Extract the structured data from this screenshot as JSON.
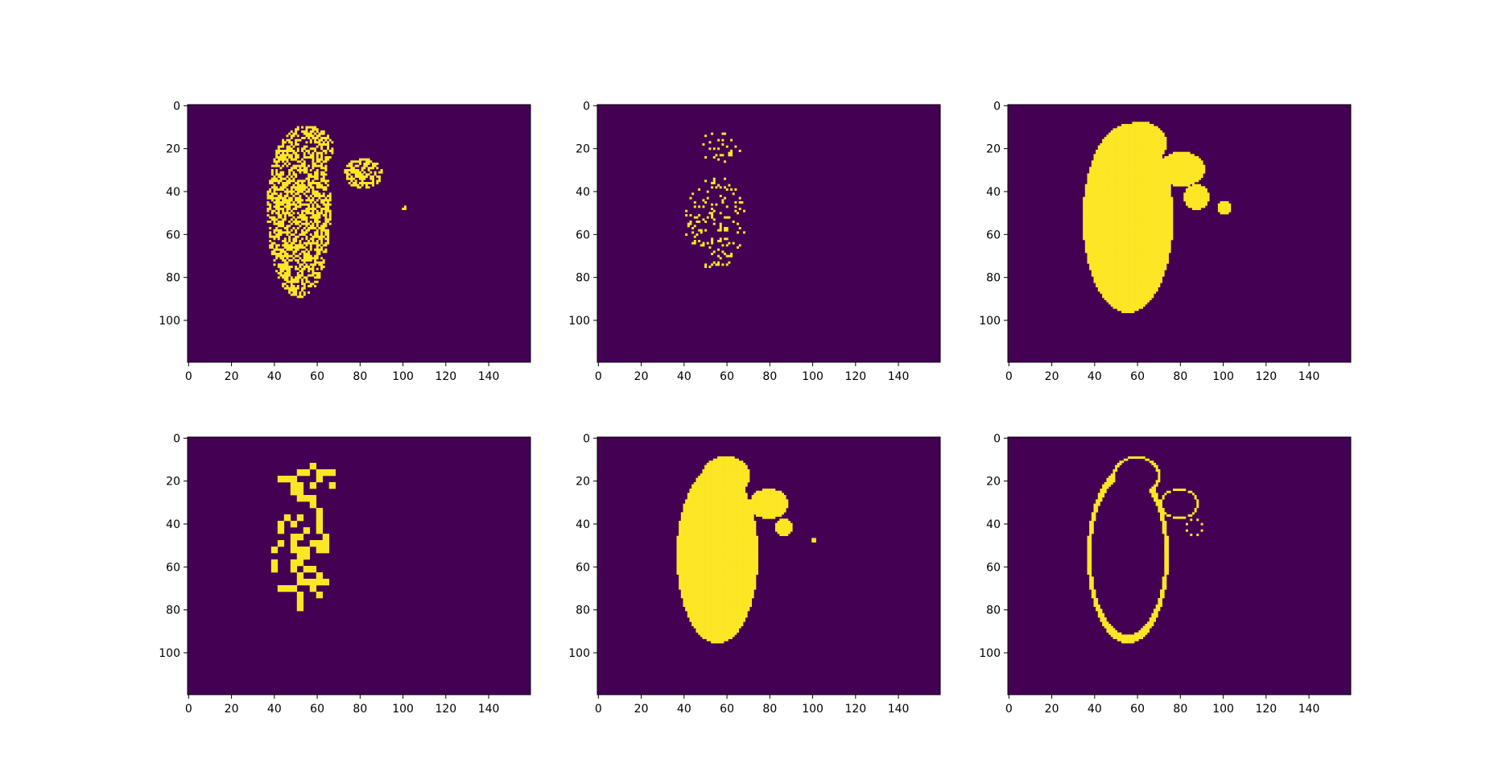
{
  "figure": {
    "layout": "2x3 grid of image panels (matplotlib imshow, viridis colormap, binary masks)",
    "colors": {
      "background": "#440154",
      "foreground": "#fde725",
      "axes": "#000000"
    }
  },
  "chart_data": [
    {
      "type": "heatmap",
      "panel": "row1-col1",
      "description": "sparse speckled binary mask",
      "image_shape": [
        120,
        160
      ],
      "xlim": [
        0,
        159
      ],
      "ylim": [
        119,
        0
      ],
      "xticks": [
        "0",
        "20",
        "40",
        "60",
        "80",
        "100",
        "120",
        "140"
      ],
      "yticks": [
        "0",
        "20",
        "40",
        "60",
        "80",
        "100"
      ],
      "mask_style": "speckle",
      "blobs": [
        {
          "cx": 52,
          "cy": 50,
          "rx": 15,
          "ry": 40
        },
        {
          "cx": 56,
          "cy": 20,
          "rx": 12,
          "ry": 10
        },
        {
          "cx": 82,
          "cy": 32,
          "rx": 9,
          "ry": 7
        },
        {
          "cx": 101,
          "cy": 48,
          "rx": 1.5,
          "ry": 1.5
        }
      ]
    },
    {
      "type": "heatmap",
      "panel": "row1-col2",
      "description": "very sparse binary mask",
      "image_shape": [
        120,
        160
      ],
      "xlim": [
        0,
        159
      ],
      "ylim": [
        119,
        0
      ],
      "xticks": [
        "0",
        "20",
        "40",
        "60",
        "80",
        "100",
        "120",
        "140"
      ],
      "yticks": [
        "0",
        "20",
        "40",
        "60",
        "80",
        "100"
      ],
      "mask_style": "sparse",
      "blobs": [
        {
          "cx": 56,
          "cy": 20,
          "rx": 12,
          "ry": 7
        },
        {
          "cx": 55,
          "cy": 55,
          "rx": 14,
          "ry": 22
        }
      ]
    },
    {
      "type": "heatmap",
      "panel": "row1-col3",
      "description": "filled dilated binary mask",
      "image_shape": [
        120,
        160
      ],
      "xlim": [
        0,
        159
      ],
      "ylim": [
        119,
        0
      ],
      "xticks": [
        "0",
        "20",
        "40",
        "60",
        "80",
        "100",
        "120",
        "140"
      ],
      "yticks": [
        "0",
        "20",
        "40",
        "60",
        "80",
        "100"
      ],
      "mask_style": "filled",
      "blobs": [
        {
          "cx": 56,
          "cy": 53,
          "rx": 21,
          "ry": 44
        },
        {
          "cx": 62,
          "cy": 18,
          "rx": 12,
          "ry": 10
        },
        {
          "cx": 81,
          "cy": 30,
          "rx": 11,
          "ry": 8
        },
        {
          "cx": 88,
          "cy": 43,
          "rx": 6,
          "ry": 6
        },
        {
          "cx": 101,
          "cy": 48,
          "rx": 3,
          "ry": 3
        }
      ]
    },
    {
      "type": "heatmap",
      "panel": "row2-col1",
      "description": "blocky sparse binary mask",
      "image_shape": [
        120,
        160
      ],
      "xlim": [
        0,
        159
      ],
      "ylim": [
        119,
        0
      ],
      "xticks": [
        "0",
        "20",
        "40",
        "60",
        "80",
        "100",
        "120",
        "140"
      ],
      "yticks": [
        "0",
        "20",
        "40",
        "60",
        "80",
        "100"
      ],
      "mask_style": "blocky",
      "blobs": [
        {
          "cx": 56,
          "cy": 20,
          "rx": 13,
          "ry": 9
        },
        {
          "cx": 54,
          "cy": 55,
          "rx": 14,
          "ry": 25
        }
      ]
    },
    {
      "type": "heatmap",
      "panel": "row2-col2",
      "description": "filled binary mask",
      "image_shape": [
        120,
        160
      ],
      "xlim": [
        0,
        159
      ],
      "ylim": [
        119,
        0
      ],
      "xticks": [
        "0",
        "20",
        "40",
        "60",
        "80",
        "100",
        "120",
        "140"
      ],
      "yticks": [
        "0",
        "20",
        "40",
        "60",
        "80",
        "100"
      ],
      "mask_style": "filled",
      "blobs": [
        {
          "cx": 56,
          "cy": 55,
          "rx": 19,
          "ry": 41
        },
        {
          "cx": 60,
          "cy": 18,
          "rx": 11,
          "ry": 9
        },
        {
          "cx": 80,
          "cy": 31,
          "rx": 9,
          "ry": 7
        },
        {
          "cx": 87,
          "cy": 42,
          "rx": 4,
          "ry": 4
        },
        {
          "cx": 101,
          "cy": 48,
          "rx": 1,
          "ry": 1
        }
      ]
    },
    {
      "type": "heatmap",
      "panel": "row2-col3",
      "description": "outline (contour) of binary mask",
      "image_shape": [
        120,
        160
      ],
      "xlim": [
        0,
        159
      ],
      "ylim": [
        119,
        0
      ],
      "xticks": [
        "0",
        "20",
        "40",
        "60",
        "80",
        "100",
        "120",
        "140"
      ],
      "yticks": [
        "0",
        "20",
        "40",
        "60",
        "80",
        "100"
      ],
      "mask_style": "outline",
      "blobs": [
        {
          "cx": 56,
          "cy": 55,
          "rx": 19,
          "ry": 41
        },
        {
          "cx": 60,
          "cy": 18,
          "rx": 11,
          "ry": 9
        },
        {
          "cx": 80,
          "cy": 31,
          "rx": 9,
          "ry": 7
        },
        {
          "cx": 87,
          "cy": 42,
          "rx": 4,
          "ry": 4
        },
        {
          "cx": 101,
          "cy": 48,
          "rx": 1,
          "ry": 1
        }
      ]
    }
  ]
}
